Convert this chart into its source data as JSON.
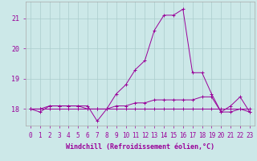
{
  "xlabel": "Windchill (Refroidissement éolien,°C)",
  "background_color": "#cce8e8",
  "grid_color": "#aacccc",
  "line_color": "#990099",
  "x_ticks": [
    0,
    1,
    2,
    3,
    4,
    5,
    6,
    7,
    8,
    9,
    10,
    11,
    12,
    13,
    14,
    15,
    16,
    17,
    18,
    19,
    20,
    21,
    22,
    23
  ],
  "y_ticks": [
    18,
    19,
    20,
    21
  ],
  "ylim": [
    17.45,
    21.55
  ],
  "xlim": [
    -0.5,
    23.5
  ],
  "series": [
    [
      18.0,
      17.9,
      18.1,
      18.1,
      18.1,
      18.1,
      18.1,
      17.6,
      18.0,
      18.5,
      18.8,
      19.3,
      19.6,
      20.6,
      21.1,
      21.1,
      21.3,
      19.2,
      19.2,
      18.5,
      17.9,
      18.1,
      18.4,
      17.9
    ],
    [
      18.0,
      18.0,
      18.0,
      18.0,
      18.0,
      18.0,
      18.0,
      18.0,
      18.0,
      18.0,
      18.0,
      18.0,
      18.0,
      18.0,
      18.0,
      18.0,
      18.0,
      18.0,
      18.0,
      18.0,
      18.0,
      18.0,
      18.0,
      18.0
    ],
    [
      18.0,
      18.0,
      18.1,
      18.1,
      18.1,
      18.1,
      18.0,
      18.0,
      18.0,
      18.1,
      18.1,
      18.2,
      18.2,
      18.3,
      18.3,
      18.3,
      18.3,
      18.3,
      18.4,
      18.4,
      17.9,
      17.9,
      18.0,
      17.9
    ]
  ],
  "tick_fontsize": 5.5,
  "xlabel_fontsize": 6.0
}
